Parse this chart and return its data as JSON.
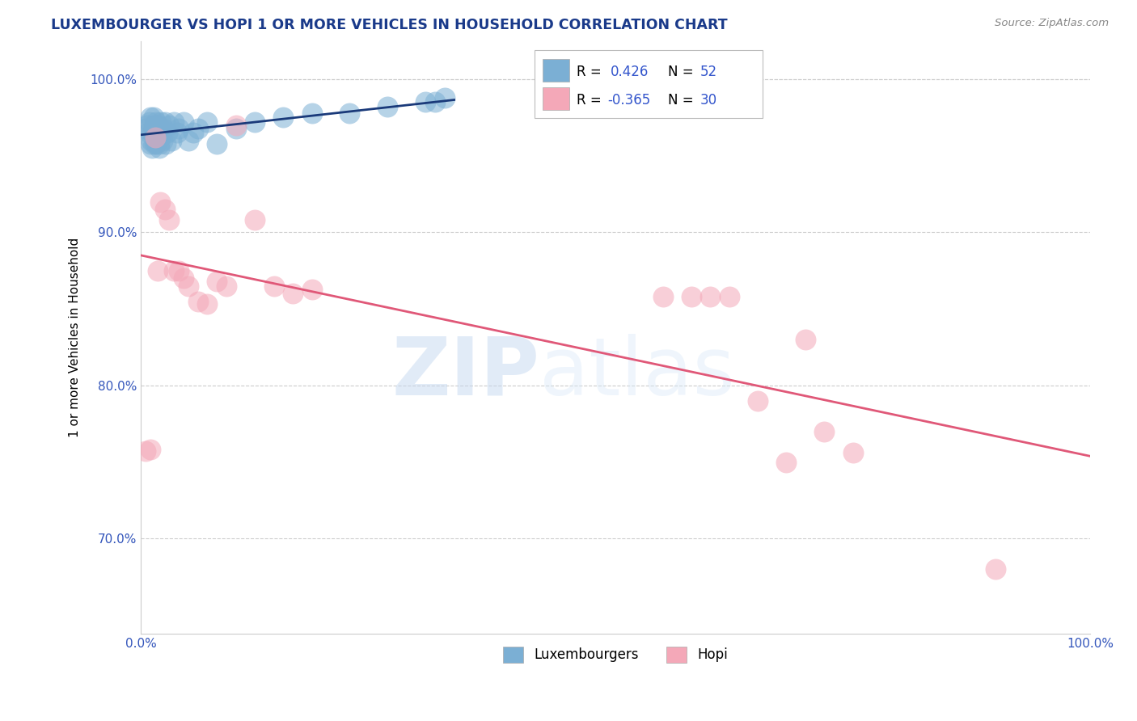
{
  "title": "LUXEMBOURGER VS HOPI 1 OR MORE VEHICLES IN HOUSEHOLD CORRELATION CHART",
  "source": "Source: ZipAtlas.com",
  "ylabel": "1 or more Vehicles in Household",
  "xlim": [
    0.0,
    1.0
  ],
  "ylim": [
    0.638,
    1.025
  ],
  "yticks": [
    0.7,
    0.8,
    0.9,
    1.0
  ],
  "ytick_labels": [
    "70.0%",
    "80.0%",
    "90.0%",
    "100.0%"
  ],
  "xtick_labels": [
    "0.0%",
    "100.0%"
  ],
  "legend_r_lux": "0.426",
  "legend_n_lux": "52",
  "legend_r_hopi": "-0.365",
  "legend_n_hopi": "30",
  "blue_color": "#7BAFD4",
  "pink_color": "#F4A8B8",
  "line_blue": "#1A3A7A",
  "line_pink": "#E05878",
  "watermark_zip": "ZIP",
  "watermark_atlas": "atlas",
  "lux_x": [
    0.005,
    0.007,
    0.008,
    0.009,
    0.01,
    0.01,
    0.011,
    0.012,
    0.012,
    0.013,
    0.013,
    0.014,
    0.014,
    0.015,
    0.015,
    0.016,
    0.016,
    0.017,
    0.017,
    0.018,
    0.018,
    0.019,
    0.019,
    0.02,
    0.02,
    0.021,
    0.022,
    0.023,
    0.024,
    0.025,
    0.026,
    0.028,
    0.03,
    0.032,
    0.035,
    0.038,
    0.04,
    0.045,
    0.05,
    0.055,
    0.06,
    0.07,
    0.08,
    0.1,
    0.12,
    0.15,
    0.18,
    0.22,
    0.26,
    0.3,
    0.31,
    0.32
  ],
  "lux_y": [
    0.968,
    0.97,
    0.965,
    0.972,
    0.958,
    0.975,
    0.96,
    0.965,
    0.955,
    0.968,
    0.975,
    0.958,
    0.97,
    0.965,
    0.96,
    0.972,
    0.958,
    0.965,
    0.968,
    0.96,
    0.97,
    0.955,
    0.958,
    0.968,
    0.962,
    0.972,
    0.965,
    0.96,
    0.968,
    0.972,
    0.958,
    0.965,
    0.97,
    0.96,
    0.972,
    0.965,
    0.968,
    0.972,
    0.96,
    0.965,
    0.968,
    0.972,
    0.958,
    0.968,
    0.972,
    0.975,
    0.978,
    0.978,
    0.982,
    0.985,
    0.985,
    0.988
  ],
  "hopi_x": [
    0.005,
    0.01,
    0.015,
    0.018,
    0.02,
    0.025,
    0.03,
    0.035,
    0.04,
    0.045,
    0.05,
    0.06,
    0.07,
    0.08,
    0.09,
    0.1,
    0.12,
    0.14,
    0.16,
    0.18,
    0.55,
    0.58,
    0.6,
    0.62,
    0.65,
    0.68,
    0.7,
    0.72,
    0.75,
    0.9
  ],
  "hopi_y": [
    0.757,
    0.758,
    0.962,
    0.875,
    0.92,
    0.915,
    0.908,
    0.875,
    0.875,
    0.87,
    0.865,
    0.855,
    0.853,
    0.868,
    0.865,
    0.97,
    0.908,
    0.865,
    0.86,
    0.863,
    0.858,
    0.858,
    0.858,
    0.858,
    0.79,
    0.75,
    0.83,
    0.77,
    0.756,
    0.68
  ]
}
